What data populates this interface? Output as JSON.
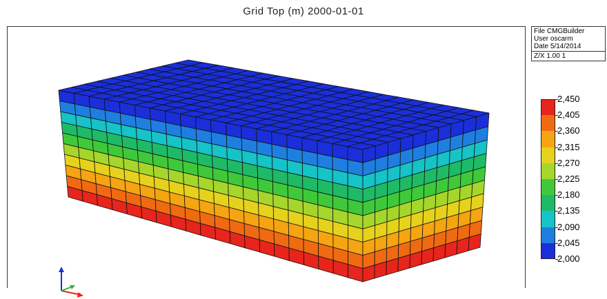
{
  "window": {
    "title": "Grid Top (m) 2000-01-01"
  },
  "info": {
    "lines": [
      "File  CMGBuilder",
      "User  oscarm",
      "Date  5/14/2014"
    ],
    "zx": "Z/X  1.00 1"
  },
  "legend": {
    "labels": [
      "2,450",
      "2,405",
      "2,360",
      "2,315",
      "2,270",
      "2,225",
      "2,180",
      "2,135",
      "2,090",
      "2,045",
      "2,000"
    ],
    "colors": [
      "#e8251c",
      "#f06a12",
      "#f5a412",
      "#e6d21c",
      "#a6d62b",
      "#3fc93a",
      "#1fba66",
      "#16c3c6",
      "#1f7fe0",
      "#1a2fd9"
    ]
  },
  "grid": {
    "layers": 10,
    "cols_front": 20,
    "cols_side": 10,
    "top_color": "#1a2fd9"
  },
  "icons": {
    "axis": "xyz-axis-icon"
  }
}
